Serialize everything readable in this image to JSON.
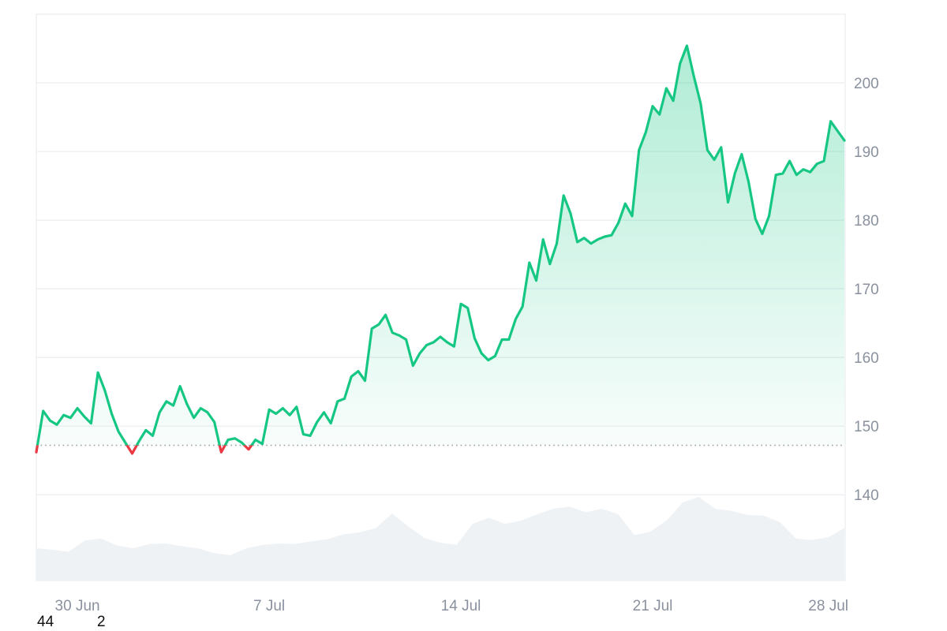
{
  "chart_data": {
    "type": "area",
    "baseline": 147.2,
    "y_axis": {
      "ticks": [
        140,
        150,
        160,
        170,
        180,
        190,
        200
      ],
      "ylim": [
        127.5,
        210
      ]
    },
    "x_axis": {
      "ticks": [
        "30 Jun",
        "7 Jul",
        "14 Jul",
        "21 Jul",
        "28 Jul"
      ],
      "xlim": [
        "2025-06-29",
        "2025-07-28"
      ]
    },
    "grid": true,
    "series": [
      {
        "values": [
          {
            "x": "2025-06-29 00:00",
            "y": 146.2
          },
          {
            "x": "2025-06-29 06:00",
            "y": 152.2
          },
          {
            "x": "2025-06-29 12:00",
            "y": 150.8
          },
          {
            "x": "2025-06-29 18:00",
            "y": 150.2
          },
          {
            "x": "2025-06-30 00:00",
            "y": 151.6
          },
          {
            "x": "2025-06-30 06:00",
            "y": 151.2
          },
          {
            "x": "2025-06-30 12:00",
            "y": 152.6
          },
          {
            "x": "2025-06-30 18:00",
            "y": 151.4
          },
          {
            "x": "2025-07-01 00:00",
            "y": 150.4
          },
          {
            "x": "2025-07-01 06:00",
            "y": 157.8
          },
          {
            "x": "2025-07-01 12:00",
            "y": 155.2
          },
          {
            "x": "2025-07-01 18:00",
            "y": 151.8
          },
          {
            "x": "2025-07-02 00:00",
            "y": 149.2
          },
          {
            "x": "2025-07-02 06:00",
            "y": 147.6
          },
          {
            "x": "2025-07-02 12:00",
            "y": 146.0
          },
          {
            "x": "2025-07-02 18:00",
            "y": 147.8
          },
          {
            "x": "2025-07-03 00:00",
            "y": 149.4
          },
          {
            "x": "2025-07-03 06:00",
            "y": 148.6
          },
          {
            "x": "2025-07-03 12:00",
            "y": 152.0
          },
          {
            "x": "2025-07-03 18:00",
            "y": 153.6
          },
          {
            "x": "2025-07-04 00:00",
            "y": 153.0
          },
          {
            "x": "2025-07-04 06:00",
            "y": 155.8
          },
          {
            "x": "2025-07-04 12:00",
            "y": 153.2
          },
          {
            "x": "2025-07-04 18:00",
            "y": 151.2
          },
          {
            "x": "2025-07-05 00:00",
            "y": 152.6
          },
          {
            "x": "2025-07-05 06:00",
            "y": 152.0
          },
          {
            "x": "2025-07-05 12:00",
            "y": 150.6
          },
          {
            "x": "2025-07-05 18:00",
            "y": 146.2
          },
          {
            "x": "2025-07-06 00:00",
            "y": 148.0
          },
          {
            "x": "2025-07-06 06:00",
            "y": 148.2
          },
          {
            "x": "2025-07-06 12:00",
            "y": 147.6
          },
          {
            "x": "2025-07-06 18:00",
            "y": 146.6
          },
          {
            "x": "2025-07-07 00:00",
            "y": 148.0
          },
          {
            "x": "2025-07-07 06:00",
            "y": 147.4
          },
          {
            "x": "2025-07-07 12:00",
            "y": 152.4
          },
          {
            "x": "2025-07-07 18:00",
            "y": 151.8
          },
          {
            "x": "2025-07-08 00:00",
            "y": 152.6
          },
          {
            "x": "2025-07-08 06:00",
            "y": 151.6
          },
          {
            "x": "2025-07-08 12:00",
            "y": 152.8
          },
          {
            "x": "2025-07-08 18:00",
            "y": 148.8
          },
          {
            "x": "2025-07-09 00:00",
            "y": 148.6
          },
          {
            "x": "2025-07-09 06:00",
            "y": 150.6
          },
          {
            "x": "2025-07-09 12:00",
            "y": 152.0
          },
          {
            "x": "2025-07-09 18:00",
            "y": 150.4
          },
          {
            "x": "2025-07-10 00:00",
            "y": 153.6
          },
          {
            "x": "2025-07-10 06:00",
            "y": 154.0
          },
          {
            "x": "2025-07-10 12:00",
            "y": 157.2
          },
          {
            "x": "2025-07-10 18:00",
            "y": 158.0
          },
          {
            "x": "2025-07-11 00:00",
            "y": 156.6
          },
          {
            "x": "2025-07-11 06:00",
            "y": 164.2
          },
          {
            "x": "2025-07-11 12:00",
            "y": 164.8
          },
          {
            "x": "2025-07-11 18:00",
            "y": 166.2
          },
          {
            "x": "2025-07-12 00:00",
            "y": 163.6
          },
          {
            "x": "2025-07-12 06:00",
            "y": 163.2
          },
          {
            "x": "2025-07-12 12:00",
            "y": 162.6
          },
          {
            "x": "2025-07-12 18:00",
            "y": 158.8
          },
          {
            "x": "2025-07-13 00:00",
            "y": 160.6
          },
          {
            "x": "2025-07-13 06:00",
            "y": 161.8
          },
          {
            "x": "2025-07-13 12:00",
            "y": 162.2
          },
          {
            "x": "2025-07-13 18:00",
            "y": 163.0
          },
          {
            "x": "2025-07-14 00:00",
            "y": 162.2
          },
          {
            "x": "2025-07-14 06:00",
            "y": 161.6
          },
          {
            "x": "2025-07-14 12:00",
            "y": 167.8
          },
          {
            "x": "2025-07-14 18:00",
            "y": 167.2
          },
          {
            "x": "2025-07-15 00:00",
            "y": 162.8
          },
          {
            "x": "2025-07-15 06:00",
            "y": 160.6
          },
          {
            "x": "2025-07-15 12:00",
            "y": 159.6
          },
          {
            "x": "2025-07-15 18:00",
            "y": 160.2
          },
          {
            "x": "2025-07-16 00:00",
            "y": 162.6
          },
          {
            "x": "2025-07-16 06:00",
            "y": 162.6
          },
          {
            "x": "2025-07-16 12:00",
            "y": 165.6
          },
          {
            "x": "2025-07-16 18:00",
            "y": 167.4
          },
          {
            "x": "2025-07-17 00:00",
            "y": 173.8
          },
          {
            "x": "2025-07-17 06:00",
            "y": 171.2
          },
          {
            "x": "2025-07-17 12:00",
            "y": 177.2
          },
          {
            "x": "2025-07-17 18:00",
            "y": 173.6
          },
          {
            "x": "2025-07-18 00:00",
            "y": 176.6
          },
          {
            "x": "2025-07-18 06:00",
            "y": 183.6
          },
          {
            "x": "2025-07-18 12:00",
            "y": 181.0
          },
          {
            "x": "2025-07-18 18:00",
            "y": 176.8
          },
          {
            "x": "2025-07-19 00:00",
            "y": 177.4
          },
          {
            "x": "2025-07-19 06:00",
            "y": 176.6
          },
          {
            "x": "2025-07-19 12:00",
            "y": 177.2
          },
          {
            "x": "2025-07-19 18:00",
            "y": 177.6
          },
          {
            "x": "2025-07-20 00:00",
            "y": 177.8
          },
          {
            "x": "2025-07-20 06:00",
            "y": 179.6
          },
          {
            "x": "2025-07-20 12:00",
            "y": 182.4
          },
          {
            "x": "2025-07-20 18:00",
            "y": 180.6
          },
          {
            "x": "2025-07-21 00:00",
            "y": 190.2
          },
          {
            "x": "2025-07-21 06:00",
            "y": 192.8
          },
          {
            "x": "2025-07-21 12:00",
            "y": 196.6
          },
          {
            "x": "2025-07-21 18:00",
            "y": 195.4
          },
          {
            "x": "2025-07-22 00:00",
            "y": 199.2
          },
          {
            "x": "2025-07-22 06:00",
            "y": 197.4
          },
          {
            "x": "2025-07-22 12:00",
            "y": 202.8
          },
          {
            "x": "2025-07-22 18:00",
            "y": 205.4
          },
          {
            "x": "2025-07-23 00:00",
            "y": 201.0
          },
          {
            "x": "2025-07-23 06:00",
            "y": 197.0
          },
          {
            "x": "2025-07-23 12:00",
            "y": 190.2
          },
          {
            "x": "2025-07-23 18:00",
            "y": 188.8
          },
          {
            "x": "2025-07-24 00:00",
            "y": 190.6
          },
          {
            "x": "2025-07-24 06:00",
            "y": 182.6
          },
          {
            "x": "2025-07-24 12:00",
            "y": 186.8
          },
          {
            "x": "2025-07-24 18:00",
            "y": 189.6
          },
          {
            "x": "2025-07-25 00:00",
            "y": 185.6
          },
          {
            "x": "2025-07-25 06:00",
            "y": 180.2
          },
          {
            "x": "2025-07-25 12:00",
            "y": 178.0
          },
          {
            "x": "2025-07-25 18:00",
            "y": 180.6
          },
          {
            "x": "2025-07-26 00:00",
            "y": 186.6
          },
          {
            "x": "2025-07-26 06:00",
            "y": 186.8
          },
          {
            "x": "2025-07-26 12:00",
            "y": 188.6
          },
          {
            "x": "2025-07-26 18:00",
            "y": 186.6
          },
          {
            "x": "2025-07-27 00:00",
            "y": 187.4
          },
          {
            "x": "2025-07-27 06:00",
            "y": 187.0
          },
          {
            "x": "2025-07-27 12:00",
            "y": 188.2
          },
          {
            "x": "2025-07-27 18:00",
            "y": 188.6
          },
          {
            "x": "2025-07-28 00:00",
            "y": 194.4
          },
          {
            "x": "2025-07-28 06:00",
            "y": 193.0
          },
          {
            "x": "2025-07-28 12:00",
            "y": 191.6
          }
        ]
      }
    ],
    "volume": [
      0.26,
      0.24,
      0.21,
      0.37,
      0.4,
      0.3,
      0.26,
      0.32,
      0.33,
      0.29,
      0.26,
      0.19,
      0.16,
      0.26,
      0.31,
      0.33,
      0.32,
      0.36,
      0.39,
      0.46,
      0.49,
      0.55,
      0.76,
      0.58,
      0.41,
      0.34,
      0.31,
      0.61,
      0.7,
      0.61,
      0.66,
      0.75,
      0.83,
      0.86,
      0.78,
      0.83,
      0.75,
      0.45,
      0.5,
      0.66,
      0.92,
      1.0,
      0.83,
      0.8,
      0.74,
      0.73,
      0.64,
      0.4,
      0.38,
      0.42,
      0.55
    ]
  },
  "colors": {
    "up": "#16c784",
    "down": "#ea3943",
    "grid": "#e9ecef",
    "volume": "#eff2f5",
    "axis_text": "#8a919e"
  },
  "footer": {
    "left": "44",
    "right": "2"
  }
}
